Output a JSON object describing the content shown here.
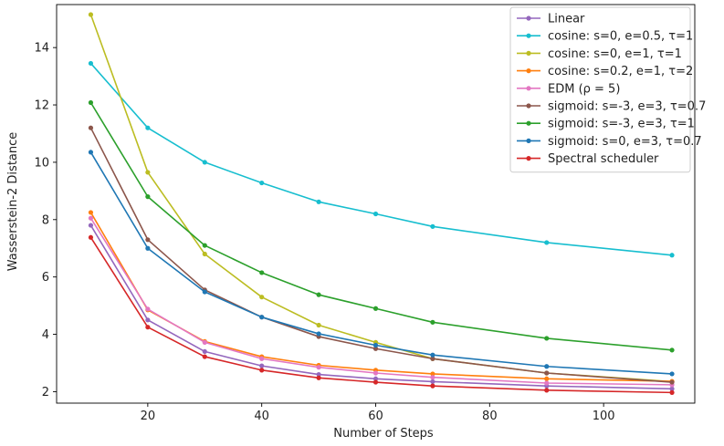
{
  "chart_data": {
    "type": "line",
    "title": "",
    "xlabel": "Number of Steps",
    "ylabel": "Wasserstein-2 Distance",
    "xlim": [
      4,
      116
    ],
    "ylim": [
      1.6,
      15.5
    ],
    "x_ticks": [
      20,
      40,
      60,
      80,
      100
    ],
    "y_ticks": [
      2,
      4,
      6,
      8,
      10,
      12,
      14
    ],
    "x": [
      10,
      20,
      30,
      40,
      50,
      60,
      70,
      90,
      112
    ],
    "legend_position": "top-right",
    "grid": false,
    "series": [
      {
        "name": "Linear",
        "color": "#9467bd",
        "values": [
          7.8,
          4.5,
          3.4,
          2.9,
          2.6,
          2.45,
          2.35,
          2.2,
          2.1
        ]
      },
      {
        "name": "cosine: s=0, e=0.5, τ=1",
        "color": "#17becf",
        "values": [
          13.45,
          11.2,
          10.0,
          9.28,
          8.62,
          8.2,
          7.76,
          7.2,
          6.76
        ]
      },
      {
        "name": "cosine: s=0, e=1, τ=1",
        "color": "#bcbd22",
        "values": [
          15.15,
          9.65,
          6.8,
          5.3,
          4.32,
          3.72,
          3.15,
          2.65,
          2.35
        ]
      },
      {
        "name": "cosine: s=0.2, e=1, τ=2",
        "color": "#ff7f0e",
        "values": [
          8.25,
          4.85,
          3.75,
          3.22,
          2.92,
          2.75,
          2.62,
          2.45,
          2.36
        ]
      },
      {
        "name": "EDM (ρ = 5)",
        "color": "#e377c2",
        "values": [
          8.05,
          4.88,
          3.72,
          3.15,
          2.85,
          2.65,
          2.5,
          2.3,
          2.24
        ]
      },
      {
        "name": "sigmoid: s=-3, e=3, τ=0.7",
        "color": "#8c564b",
        "values": [
          11.2,
          7.3,
          5.55,
          4.6,
          3.92,
          3.5,
          3.15,
          2.65,
          2.33
        ]
      },
      {
        "name": "sigmoid: s=-3, e=3, τ=1",
        "color": "#2ca02c",
        "values": [
          12.08,
          8.8,
          7.1,
          6.15,
          5.38,
          4.9,
          4.42,
          3.86,
          3.45
        ]
      },
      {
        "name": "sigmoid: s=0, e=3, τ=0.7",
        "color": "#1f77b4",
        "values": [
          10.35,
          7.0,
          5.48,
          4.6,
          4.02,
          3.62,
          3.28,
          2.88,
          2.62
        ]
      },
      {
        "name": "Spectral scheduler",
        "color": "#d62728",
        "values": [
          7.38,
          4.25,
          3.22,
          2.75,
          2.48,
          2.33,
          2.2,
          2.05,
          1.97
        ]
      }
    ]
  }
}
